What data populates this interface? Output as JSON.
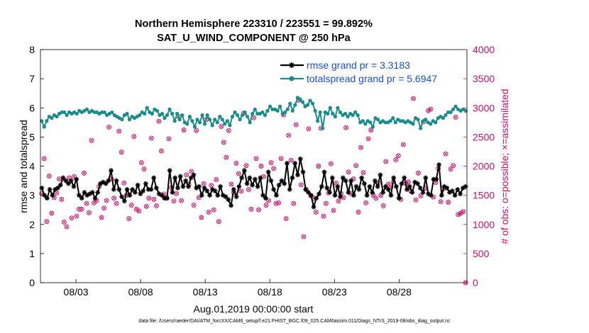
{
  "chart_data": {
    "type": "line",
    "title": "Northern Hemisphere 223310 / 223551 = 99.892%",
    "subtitle": "SAT_U_WIND_COMPONENT @ 250 hPa",
    "xlabel": "Aug.01,2019 00:00:00 start",
    "ylabel": "rmse and totalspread",
    "ylabel_right": "# of obs: o=possible; ×=assimilated",
    "xlim": [
      0,
      33
    ],
    "ylim": [
      0,
      8
    ],
    "ylim_right": [
      0,
      4000
    ],
    "x_ticks": [
      2.75,
      7.75,
      12.75,
      17.75,
      22.75,
      27.75
    ],
    "x_tick_labels": [
      "08/03",
      "08/08",
      "08/13",
      "08/18",
      "08/23",
      "08/28"
    ],
    "y_ticks": [
      0,
      1,
      2,
      3,
      4,
      5,
      6,
      7,
      8
    ],
    "y_ticks_right": [
      0,
      500,
      1000,
      1500,
      2000,
      2500,
      3000,
      3500,
      4000
    ],
    "footer": "data file: /Users/raeder/DAI/ATM_forcXX/CAM6_setup/f.e21.FHIST_BGC.f09_025.CAM6assim.011/Diags_NTrS_2019-08/obs_diag_output.nc",
    "series": [
      {
        "name": "rmse grand pr = 3.3183",
        "color": "#000000",
        "marker": "star",
        "values": [
          3.25,
          3.0,
          2.9,
          3.2,
          3.0,
          3.2,
          3.25,
          3.35,
          3.6,
          3.5,
          3.4,
          3.5,
          3.3,
          3.55,
          3.0,
          2.9,
          3.1,
          3.0,
          3.05,
          3.1,
          2.9,
          3.1,
          3.4,
          3.45,
          3.4,
          3.5,
          3.85,
          3.2,
          3.5,
          3.2,
          2.95,
          2.8,
          3.2,
          3.0,
          3.2,
          3.1,
          3.35,
          3.05,
          3.15,
          3.4,
          3.2,
          3.2,
          3.6,
          3.25,
          3.05,
          3.0,
          2.9,
          2.9,
          3.85,
          3.1,
          3.6,
          3.25,
          3.65,
          3.3,
          3.5,
          3.3,
          3.6,
          3.7,
          3.25,
          3.3,
          3.0,
          3.25,
          3.15,
          3.0,
          3.2,
          3.15,
          3.0,
          3.3,
          3.0,
          2.95,
          2.85,
          2.65,
          3.2,
          2.95,
          3.3,
          3.6,
          3.85,
          3.4,
          3.6,
          3.35,
          3.55,
          3.3,
          3.6,
          3.0,
          2.9,
          3.8,
          3.5,
          3.2,
          3.0,
          3.35,
          3.5,
          3.4,
          4.1,
          3.2,
          3.6,
          4.1,
          3.7,
          4.25,
          3.8,
          3.2,
          3.1,
          3.0,
          2.6,
          2.9,
          3.05,
          3.3,
          3.8,
          3.25,
          3.1,
          3.6,
          3.0,
          3.3,
          2.95,
          3.6,
          3.5,
          3.1,
          3.5,
          3.0,
          3.3,
          3.2,
          3.6,
          3.4,
          3.0,
          3.3,
          3.1,
          3.5,
          3.3,
          3.7,
          3.1,
          3.3,
          3.2,
          3.0,
          3.6,
          3.3,
          2.9,
          3.4,
          3.6,
          3.2,
          3.3,
          3.1,
          3.45,
          3.4,
          3.25,
          3.1,
          3.6,
          3.05,
          3.0,
          3.55,
          3.55,
          4.05,
          3.0,
          3.3,
          3.25,
          3.1,
          3.15,
          3.0,
          3.2,
          3.05,
          3.25,
          3.3
        ]
      },
      {
        "name": "totalspread grand pr = 5.6947",
        "color": "#1a8c8c",
        "marker": "circle",
        "values": [
          5.55,
          5.35,
          5.55,
          5.7,
          5.65,
          5.75,
          5.7,
          5.8,
          5.85,
          5.85,
          5.75,
          5.85,
          5.8,
          5.85,
          5.8,
          5.9,
          5.85,
          5.9,
          5.95,
          5.85,
          5.9,
          5.85,
          5.85,
          5.8,
          5.85,
          5.85,
          5.75,
          5.8,
          5.85,
          5.75,
          5.7,
          5.65,
          5.6,
          5.75,
          5.8,
          5.6,
          5.7,
          5.65,
          5.7,
          5.75,
          5.85,
          5.8,
          6.0,
          5.85,
          5.8,
          5.95,
          5.9,
          5.75,
          5.8,
          5.65,
          5.75,
          5.95,
          5.8,
          5.55,
          5.8,
          5.6,
          5.75,
          5.5,
          5.45,
          5.7,
          5.55,
          5.35,
          5.6,
          5.5,
          5.75,
          5.45,
          5.75,
          5.6,
          5.4,
          5.6,
          5.5,
          5.7,
          5.6,
          5.45,
          5.55,
          5.4,
          5.7,
          5.85,
          5.75,
          5.6,
          5.75,
          5.85,
          5.7,
          5.5,
          5.8,
          5.95,
          5.8,
          5.8,
          5.85,
          5.75,
          5.9,
          6.05,
          5.95,
          5.95,
          5.9,
          6.05,
          5.8,
          5.85,
          5.95,
          6.15,
          5.9,
          6.1,
          6.35,
          6.3,
          6.2,
          6.05,
          6.1,
          6.25,
          6.15,
          5.9,
          5.55,
          5.85,
          5.3,
          5.85,
          5.8,
          6.0,
          5.8,
          5.7,
          6.0,
          5.85,
          5.75,
          5.8,
          5.7,
          5.8,
          5.75,
          5.85,
          5.75,
          5.5,
          5.55,
          5.45,
          5.55,
          5.5,
          5.35,
          5.65,
          5.6,
          5.5,
          5.55,
          5.5,
          5.5,
          5.55,
          5.65,
          5.5,
          5.6,
          5.55,
          5.55,
          5.5,
          5.55,
          5.5,
          5.45,
          5.65,
          5.6,
          5.3,
          5.55,
          5.6,
          5.5,
          5.45,
          5.55,
          5.5,
          5.65,
          5.7,
          5.65,
          5.75,
          5.85,
          5.85,
          5.95,
          6.05,
          5.95,
          5.9,
          5.95,
          5.9
        ]
      }
    ],
    "obs_counts": [
      1530,
      2130,
      1050,
      1830,
      1190,
      1460,
      1540,
      1780,
      1430,
      1040,
      960,
      1800,
      1110,
      1820,
      1140,
      1260,
      1260,
      1880,
      1360,
      1200,
      2440,
      1370,
      1410,
      1650,
      1120,
      1280,
      1410,
      2670,
      1780,
      1450,
      1360,
      2600,
      2240,
      1710,
      1500,
      1100,
      1330,
      2510,
      1260,
      1230,
      2060,
      1950,
      1310,
      1450,
      2480,
      1430,
      1320,
      2770,
      2260,
      1520,
      1450,
      2470,
      1630,
      1400,
      1530,
      2850,
      1410,
      2620,
      1850,
      1690,
      1910,
      1330,
      2610,
      1460,
      1120,
      1700,
      2800,
      1210,
      1670,
      1250,
      1770,
      1050,
      2680,
      2410,
      2150,
      2610,
      1690,
      1550,
      2050,
      1870,
      1570,
      2910,
      2010,
      1600,
      1260,
      2830,
      2130,
      1250,
      2000,
      1820,
      1330,
      1410,
      2060,
      1960,
      1360,
      1370,
      2130,
      2880,
      1100,
      2530,
      2100,
      1360,
      2710,
      3130,
      1680,
      790,
      1600,
      2640,
      1490,
      1450,
      1210,
      2000,
      2650,
      1140,
      1360,
      1540,
      2040,
      1240,
      1710,
      1400,
      1530,
      1460,
      2660,
      1900,
      1530,
      1780,
      2010,
      1210,
      2320,
      1890,
      1370,
      2470,
      2620,
      1500,
      1450,
      1710,
      1500,
      1320,
      2080,
      1690,
      1640,
      1730,
      2110,
      2180,
      1430,
      2370,
      1700,
      1730,
      1570,
      3160,
      1420,
      1880,
      1490,
      2760,
      1620,
      2950,
      2980,
      1470,
      1720,
      1960,
      1390,
      1610,
      2210,
      1380,
      1950,
      2010,
      2840,
      1170,
      1190,
      1220,
      0
    ]
  }
}
